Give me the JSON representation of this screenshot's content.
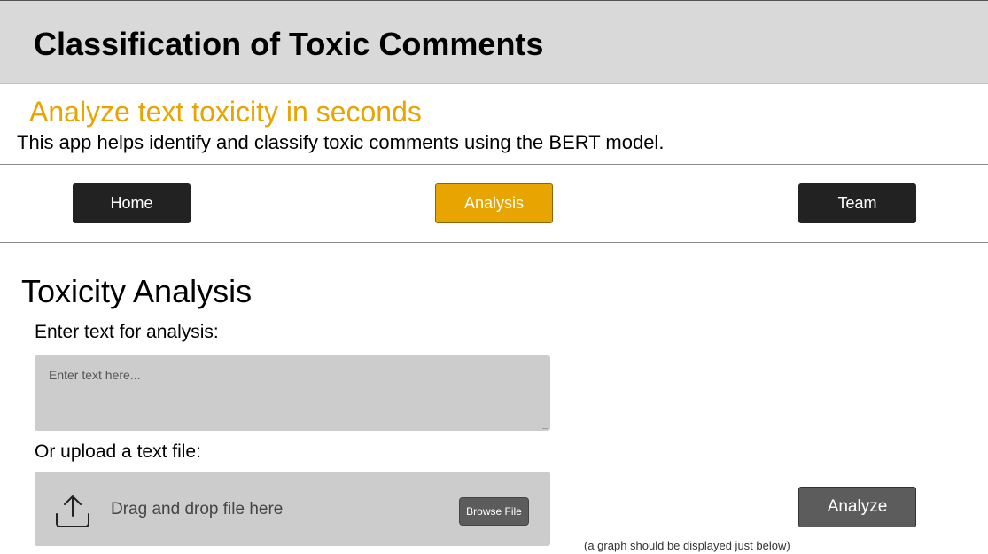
{
  "header": {
    "title": "Classification of Toxic Comments"
  },
  "intro": {
    "tagline": "Analyze text toxicity in seconds",
    "description": "This app helps identify and classify toxic comments using the BERT model."
  },
  "nav": {
    "home_label": "Home",
    "analysis_label": "Analysis",
    "team_label": "Team",
    "active": "Analysis"
  },
  "analysis": {
    "section_title": "Toxicity Analysis",
    "text_label": "Enter text for analysis:",
    "text_value": "",
    "text_placeholder": "Enter text here...",
    "upload_label": "Or upload a text file:",
    "dropzone_text": "Drag and drop file here",
    "browse_label": "Browse File",
    "analyze_label": "Analyze",
    "graph_note": "(a graph should be displayed just below)"
  },
  "icons": {
    "upload": "upload-icon"
  },
  "colors": {
    "accent": "#e8a400",
    "header_bg": "#d9d9d9",
    "nav_dark": "#222222",
    "input_bg": "#cccccc",
    "button_gray": "#5c5c5c"
  }
}
